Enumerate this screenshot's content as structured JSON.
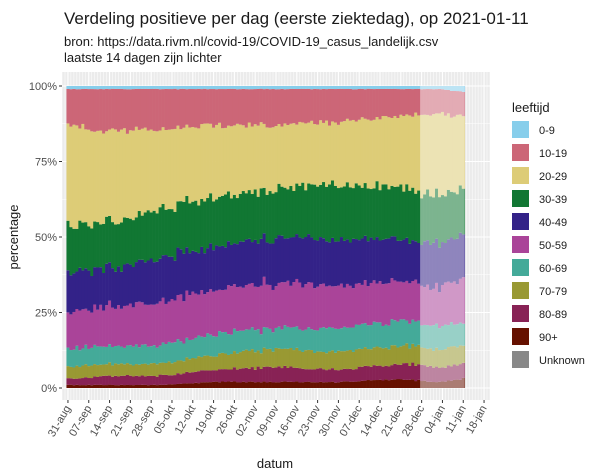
{
  "chart_data": {
    "type": "area",
    "stacked": true,
    "normalized_percent": true,
    "title": "Verdeling positieve per dag (eerste ziektedag), op 2021-01-11",
    "subtitle_lines": [
      "bron: https://data.rivm.nl/covid-19/COVID-19_casus_landelijk.csv",
      "laatste 14 dagen zijn lichter"
    ],
    "xlabel": "datum",
    "ylabel": "percentage",
    "ylim": [
      0,
      100
    ],
    "y_ticks": [
      "0%",
      "25%",
      "50%",
      "75%",
      "100%"
    ],
    "x_ticks": [
      "31-aug",
      "07-sep",
      "14-sep",
      "21-sep",
      "28-sep",
      "05-okt",
      "12-okt",
      "19-okt",
      "26-okt",
      "02-nov",
      "09-nov",
      "16-nov",
      "23-nov",
      "30-nov",
      "07-dec",
      "14-dec",
      "21-dec",
      "28-dec",
      "04-jan",
      "11-jan",
      "18-jan"
    ],
    "x_range": [
      "2020-08-29",
      "2021-01-20"
    ],
    "highlight_period": {
      "from": "2020-12-28",
      "to": "2021-01-11",
      "note": "lighter shading"
    },
    "legend_title": "leeftijd",
    "legend_position": "right",
    "grid": true,
    "series": [
      {
        "name": "0-9",
        "color": "#87CEEB"
      },
      {
        "name": "10-19",
        "color": "#CC6677"
      },
      {
        "name": "20-29",
        "color": "#DDCC77"
      },
      {
        "name": "30-39",
        "color": "#117733"
      },
      {
        "name": "40-49",
        "color": "#332288"
      },
      {
        "name": "50-59",
        "color": "#AA4499"
      },
      {
        "name": "60-69",
        "color": "#44AA99"
      },
      {
        "name": "70-79",
        "color": "#999933"
      },
      {
        "name": "80-89",
        "color": "#882255"
      },
      {
        "name": "90+",
        "color": "#661100"
      },
      {
        "name": "Unknown",
        "color": "#888888"
      }
    ],
    "keyframes_percent": {
      "dates": [
        "2020-09-01",
        "2020-09-14",
        "2020-10-01",
        "2020-10-19",
        "2020-11-09",
        "2020-12-01",
        "2020-12-20",
        "2021-01-03",
        "2021-01-11"
      ],
      "0-9": [
        1,
        1,
        1,
        1,
        1,
        1,
        1,
        1,
        2
      ],
      "10-19": [
        12,
        14,
        13,
        12,
        12,
        11,
        9,
        8,
        8
      ],
      "20-29": [
        34,
        30,
        27,
        24,
        21,
        21,
        24,
        27,
        24
      ],
      "30-39": [
        15,
        15,
        16,
        16,
        16,
        18,
        17,
        16,
        15
      ],
      "40-49": [
        13,
        13,
        15,
        14,
        15,
        15,
        14,
        14,
        15
      ],
      "50-59": [
        12,
        13,
        14,
        15,
        15,
        14,
        13,
        13,
        15
      ],
      "60-69": [
        6,
        6,
        6,
        7,
        7,
        8,
        8,
        8,
        7
      ],
      "70-79": [
        4,
        4,
        4,
        5,
        6,
        6,
        6,
        6,
        6
      ],
      "80-89": [
        2,
        3,
        3,
        4,
        5,
        4,
        5,
        5,
        5
      ],
      "90+": [
        1,
        1,
        1,
        2,
        2,
        2,
        3,
        2,
        3
      ],
      "Unknown": [
        0,
        0,
        0,
        0,
        0,
        0,
        0,
        0,
        0
      ]
    }
  }
}
